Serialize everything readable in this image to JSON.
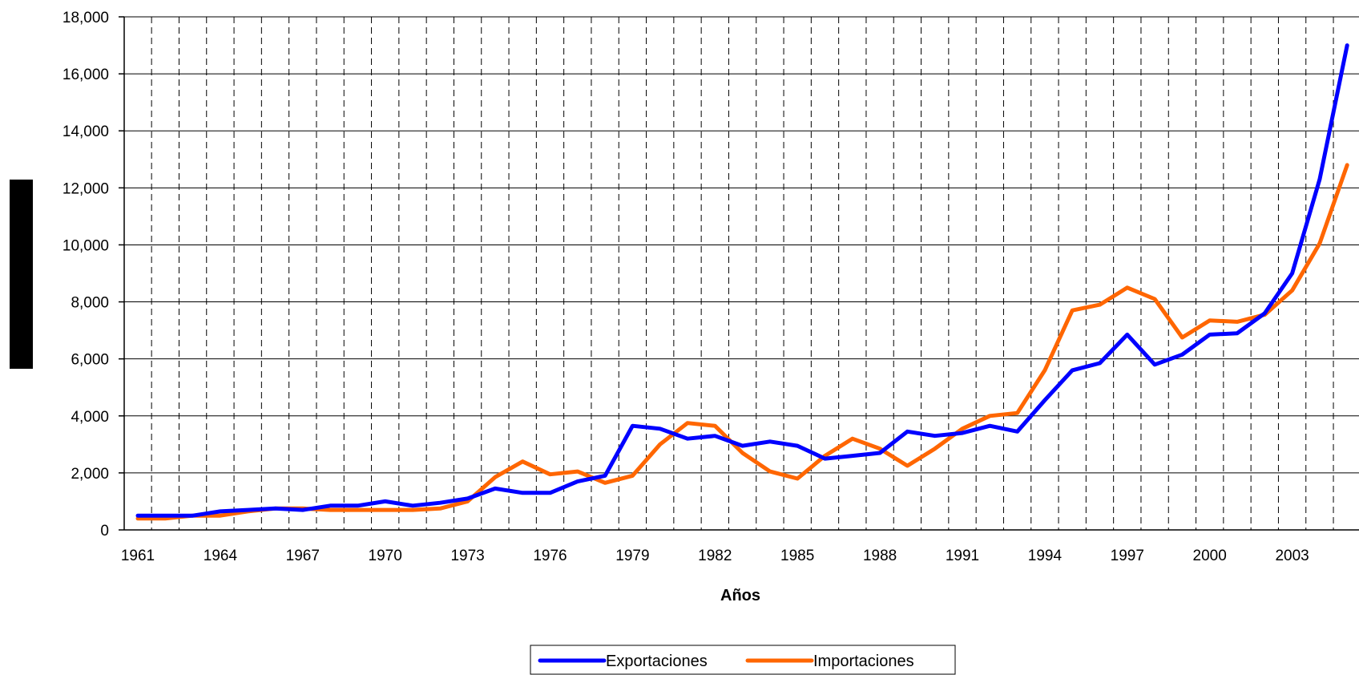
{
  "chart_data": {
    "type": "line",
    "xlabel": "Años",
    "ylabel": "",
    "ylim": [
      0,
      18000
    ],
    "y_ticks": [
      0,
      2000,
      4000,
      6000,
      8000,
      10000,
      12000,
      14000,
      16000,
      18000
    ],
    "y_tick_labels": [
      "0",
      "2,000",
      "4,000",
      "6,000",
      "8,000",
      "10,000",
      "12,000",
      "14,000",
      "16,000",
      "18,000"
    ],
    "x": [
      1961,
      1962,
      1963,
      1964,
      1965,
      1966,
      1967,
      1968,
      1969,
      1970,
      1971,
      1972,
      1973,
      1974,
      1975,
      1976,
      1977,
      1978,
      1979,
      1980,
      1981,
      1982,
      1983,
      1984,
      1985,
      1986,
      1987,
      1988,
      1989,
      1990,
      1991,
      1992,
      1993,
      1994,
      1995,
      1996,
      1997,
      1998,
      1999,
      2000,
      2001,
      2002,
      2003,
      2004,
      2005
    ],
    "x_tick_labels": [
      1961,
      1964,
      1967,
      1970,
      1973,
      1976,
      1979,
      1982,
      1985,
      1988,
      1991,
      1994,
      1997,
      2000,
      2003
    ],
    "grid": {
      "horizontal": "solid",
      "vertical": "dashed"
    },
    "legend_position": "bottom",
    "series": [
      {
        "name": "Exportaciones",
        "color": "#0000ff",
        "values": [
          500,
          500,
          500,
          650,
          700,
          750,
          700,
          850,
          850,
          1000,
          850,
          950,
          1100,
          1450,
          1300,
          1300,
          1700,
          1900,
          3650,
          3550,
          3200,
          3300,
          2950,
          3100,
          2950,
          2500,
          2600,
          2700,
          3450,
          3300,
          3400,
          3650,
          3450,
          4550,
          5600,
          5850,
          6850,
          5800,
          6150,
          6850,
          6900,
          7600,
          9000,
          12300,
          17000
        ]
      },
      {
        "name": "Importaciones",
        "color": "#ff6600",
        "values": [
          400,
          400,
          500,
          500,
          650,
          750,
          750,
          700,
          700,
          700,
          700,
          750,
          1000,
          1850,
          2400,
          1950,
          2050,
          1650,
          1900,
          3000,
          3750,
          3650,
          2700,
          2050,
          1800,
          2600,
          3200,
          2850,
          2250,
          2850,
          3550,
          4000,
          4100,
          5600,
          7700,
          7900,
          8500,
          8100,
          6750,
          7350,
          7300,
          7550,
          8400,
          10050,
          12800
        ]
      }
    ]
  }
}
